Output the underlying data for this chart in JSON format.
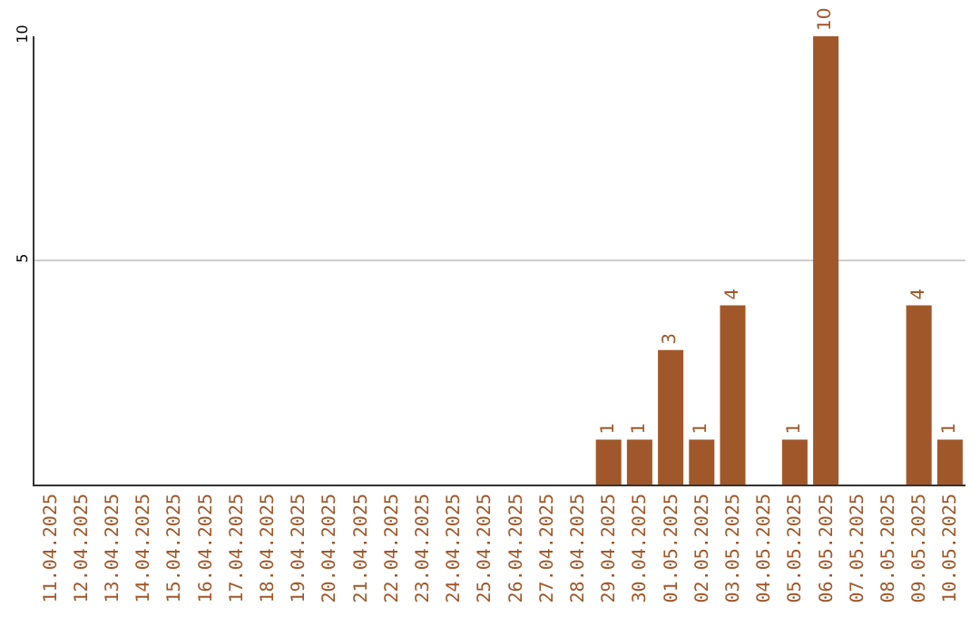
{
  "chart_data": {
    "type": "bar",
    "categories": [
      "11.04.2025",
      "12.04.2025",
      "13.04.2025",
      "14.04.2025",
      "15.04.2025",
      "16.04.2025",
      "17.04.2025",
      "18.04.2025",
      "19.04.2025",
      "20.04.2025",
      "21.04.2025",
      "22.04.2025",
      "23.04.2025",
      "24.04.2025",
      "25.04.2025",
      "26.04.2025",
      "27.04.2025",
      "28.04.2025",
      "29.04.2025",
      "30.04.2025",
      "01.05.2025",
      "02.05.2025",
      "03.05.2025",
      "04.05.2025",
      "05.05.2025",
      "06.05.2025",
      "07.05.2025",
      "08.05.2025",
      "09.05.2025",
      "10.05.2025"
    ],
    "values": [
      0,
      0,
      0,
      0,
      0,
      0,
      0,
      0,
      0,
      0,
      0,
      0,
      0,
      0,
      0,
      0,
      0,
      0,
      1,
      1,
      3,
      1,
      4,
      0,
      1,
      10,
      0,
      0,
      4,
      1
    ],
    "value_labels": [
      null,
      null,
      null,
      null,
      null,
      null,
      null,
      null,
      null,
      null,
      null,
      null,
      null,
      null,
      null,
      null,
      null,
      null,
      "1",
      "1",
      "3",
      "1",
      "4",
      null,
      "1",
      "10",
      null,
      null,
      "4",
      "1"
    ],
    "color": "#a0582a",
    "ylim": [
      0,
      10
    ],
    "yticks": [
      5,
      10
    ],
    "grid": "y"
  }
}
